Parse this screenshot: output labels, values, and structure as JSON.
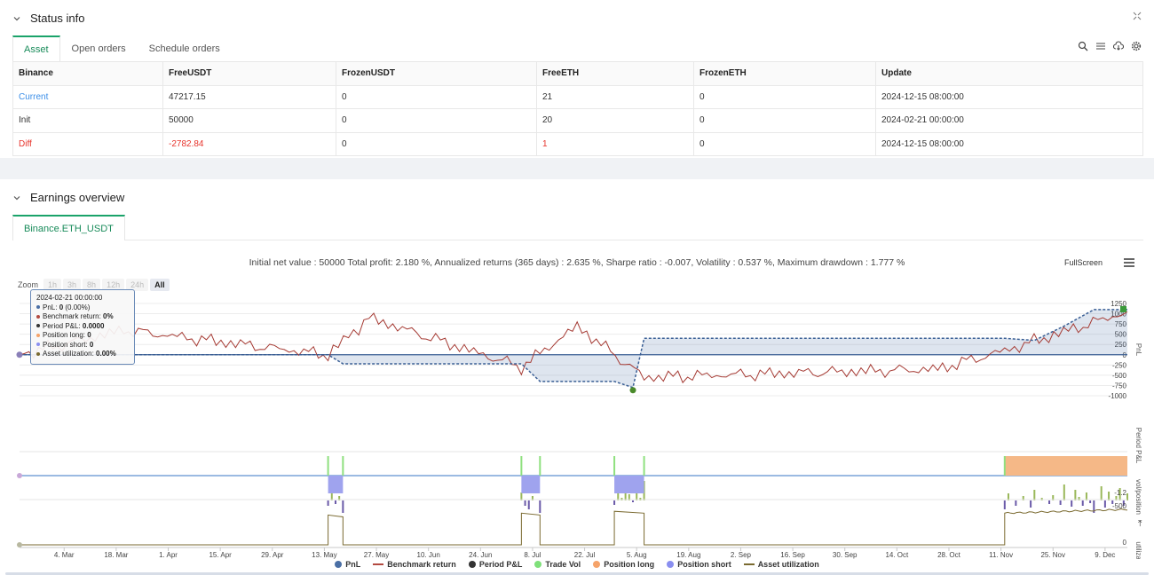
{
  "status": {
    "title": "Status info",
    "tabs": [
      "Asset",
      "Open orders",
      "Schedule orders"
    ],
    "table": {
      "headers": [
        "Binance",
        "FreeUSDT",
        "FrozenUSDT",
        "FreeETH",
        "FrozenETH",
        "Update"
      ],
      "rows": [
        [
          "Current",
          "47217.15",
          "0",
          "21",
          "0",
          "2024-12-15 08:00:00"
        ],
        [
          "Init",
          "50000",
          "0",
          "20",
          "0",
          "2024-02-21 00:00:00"
        ],
        [
          "Diff",
          "-2782.84",
          "0",
          "1",
          "0",
          "2024-12-15 08:00:00"
        ]
      ]
    },
    "icons": [
      "search-icon",
      "list-icon",
      "cloud-download-icon",
      "gear-icon"
    ]
  },
  "earnings": {
    "title": "Earnings overview",
    "tab": "Binance.ETH_USDT",
    "summary": "Initial net value : 50000 Total profit: 2.180 %, Annualized returns (365 days) : 2.635 %, Sharpe ratio : -0.007, Volatility : 0.537 %, Maximum drawdown : 1.777 %",
    "fullscreen": "FullScreen",
    "zoom_label": "Zoom",
    "zoom_buttons": [
      "1h",
      "3h",
      "8h",
      "12h",
      "24h",
      "All"
    ],
    "tooltip": {
      "date": "2024-02-21 00:00:00",
      "lines": [
        {
          "label": "PnL: ",
          "value": "0",
          "extra": " (0.00%)",
          "color": "#4a6fa5"
        },
        {
          "label": "Benchmark return: ",
          "value": "0%",
          "extra": "",
          "color": "#b34a40"
        },
        {
          "label": "Period P&L: ",
          "value": "0.0000",
          "extra": "",
          "color": "#333333"
        },
        {
          "label": "Position long: ",
          "value": "0",
          "extra": "",
          "color": "#f5a36a"
        },
        {
          "label": "Position short: ",
          "value": "0",
          "extra": "",
          "color": "#8a8ff0"
        },
        {
          "label": "Asset utilization: ",
          "value": "0.00%",
          "extra": "",
          "color": "#7a6a30"
        }
      ]
    },
    "legend": [
      {
        "name": "PnL",
        "color": "#4a6fa5",
        "shape": "dot"
      },
      {
        "name": "Benchmark return",
        "color": "#b34a40",
        "shape": "line"
      },
      {
        "name": "Period P&L",
        "color": "#333333",
        "shape": "dot"
      },
      {
        "name": "Trade Vol",
        "color": "#7fe07a",
        "shape": "dot"
      },
      {
        "name": "Position long",
        "color": "#f5a36a",
        "shape": "dot"
      },
      {
        "name": "Position short",
        "color": "#8a8ff0",
        "shape": "dot"
      },
      {
        "name": "Asset utilization",
        "color": "#7a6a30",
        "shape": "line"
      }
    ]
  },
  "chart_data": {
    "type": "line",
    "x_ticks": [
      "4. Mar",
      "18. Mar",
      "1. Apr",
      "15. Apr",
      "29. Apr",
      "13. May",
      "27. May",
      "10. Jun",
      "24. Jun",
      "8. Jul",
      "22. Jul",
      "5. Aug",
      "19. Aug",
      "2. Sep",
      "16. Sep",
      "30. Sep",
      "14. Oct",
      "28. Oct",
      "11. Nov",
      "25. Nov",
      "9. Dec"
    ],
    "panels": [
      {
        "ylabel": "PnL",
        "ticks": [
          "1250",
          "1000",
          "750",
          "500",
          "250",
          "0",
          "-250",
          "-500",
          "-750",
          "-1000"
        ],
        "ylim": [
          -1000,
          1250
        ]
      },
      {
        "ylabel": "Period P&L",
        "ticks": [
          "-500"
        ]
      },
      {
        "ylabel": "vol/position",
        "ticks": [
          "-1.2"
        ]
      },
      {
        "ylabel": "utilization",
        "ticks": [
          "0"
        ]
      }
    ],
    "series": [
      {
        "name": "PnL",
        "x": [
          "2024-02-21",
          "2024-05-14",
          "2024-05-18",
          "2024-07-05",
          "2024-07-10",
          "2024-07-30",
          "2024-08-04",
          "2024-08-07",
          "2024-11-12",
          "2024-11-20",
          "2024-11-28",
          "2024-12-06",
          "2024-12-15"
        ],
        "values": [
          0,
          0,
          -220,
          -220,
          -650,
          -650,
          -800,
          400,
          400,
          350,
          700,
          1100,
          1100
        ]
      },
      {
        "name": "Benchmark return",
        "x": [
          "2024-02-21",
          "2024-03-20",
          "2024-05-14",
          "2024-05-25",
          "2024-07-05",
          "2024-07-20",
          "2024-08-07",
          "2024-09-15",
          "2024-10-25",
          "2024-11-12",
          "2024-12-15"
        ],
        "values": [
          0,
          600,
          0,
          900,
          -300,
          700,
          -550,
          -450,
          -350,
          100,
          1050
        ]
      },
      {
        "name": "Asset utilization",
        "x": [
          "2024-05-14",
          "2024-05-18",
          "2024-07-05",
          "2024-07-10",
          "2024-07-30",
          "2024-08-07",
          "2024-11-12",
          "2024-12-15"
        ],
        "values": [
          0.8,
          0,
          0.85,
          0,
          0.9,
          0,
          0.85,
          0.95
        ]
      }
    ]
  }
}
